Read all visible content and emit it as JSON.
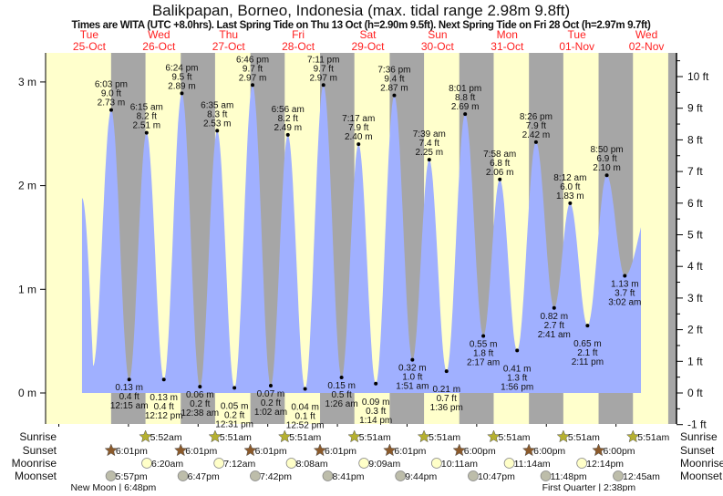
{
  "chart_data": {
    "type": "area",
    "title": "Balikpapan, Borneo, Indonesia (max. tidal range 2.98m 9.8ft)",
    "subtitle": "Times are WITA (UTC +8.0hrs). Last Spring Tide on Thu 13 Oct (h=2.90m 9.5ft). Next Spring Tide on Fri 28 Oct (h=2.97m 9.7ft)",
    "days": [
      {
        "name": "Tue",
        "date": "25-Oct"
      },
      {
        "name": "Wed",
        "date": "26-Oct"
      },
      {
        "name": "Thu",
        "date": "27-Oct"
      },
      {
        "name": "Fri",
        "date": "28-Oct"
      },
      {
        "name": "Sat",
        "date": "29-Oct"
      },
      {
        "name": "Sun",
        "date": "30-Oct"
      },
      {
        "name": "Mon",
        "date": "31-Oct"
      },
      {
        "name": "Tue",
        "date": "01-Nov"
      },
      {
        "name": "Wed",
        "date": "02-Nov"
      }
    ],
    "y_left": {
      "unit": "m",
      "ticks": [
        "0 m",
        "1 m",
        "2 m",
        "3 m"
      ],
      "values": [
        0,
        1,
        2,
        3
      ]
    },
    "y_right": {
      "unit": "ft",
      "ticks": [
        "-1 ft",
        "0 ft",
        "1 ft",
        "2 ft",
        "3 ft",
        "4 ft",
        "5 ft",
        "6 ft",
        "7 ft",
        "8 ft",
        "9 ft",
        "10 ft"
      ],
      "values": [
        -1,
        0,
        1,
        2,
        3,
        4,
        5,
        6,
        7,
        8,
        9,
        10
      ]
    },
    "ylim_m": [
      -0.3,
      3.28
    ],
    "curve_start": {
      "day": 0,
      "time": "8:00am",
      "m": 1.88
    },
    "curve_unlabeled_low": {
      "day": 0,
      "time": "11:48am",
      "m": 0.26
    },
    "curve_end": {
      "day": 8,
      "time": "8:36am",
      "m": 1.6
    },
    "tides": [
      {
        "day": 0,
        "time": "6:03pm",
        "m": "2.73 m",
        "ft": "9.0 ft",
        "type": "high",
        "value": 2.73
      },
      {
        "day": 1,
        "time": "12:15am",
        "m": "0.13 m",
        "ft": "0.4 ft",
        "type": "low",
        "value": 0.13
      },
      {
        "day": 1,
        "time": "6:15am",
        "m": "2.51 m",
        "ft": "8.2 ft",
        "type": "high",
        "value": 2.51
      },
      {
        "day": 1,
        "time": "12:12pm",
        "m": "0.13 m",
        "ft": "0.4 ft",
        "type": "low",
        "value": 0.13
      },
      {
        "day": 1,
        "time": "6:24pm",
        "m": "2.89 m",
        "ft": "9.5 ft",
        "type": "high",
        "value": 2.89
      },
      {
        "day": 2,
        "time": "12:38am",
        "m": "0.06 m",
        "ft": "0.2 ft",
        "type": "low",
        "value": 0.06
      },
      {
        "day": 2,
        "time": "6:35am",
        "m": "2.53 m",
        "ft": "8.3 ft",
        "type": "high",
        "value": 2.53
      },
      {
        "day": 2,
        "time": "12:31pm",
        "m": "0.05 m",
        "ft": "0.2 ft",
        "type": "low",
        "value": 0.05
      },
      {
        "day": 2,
        "time": "6:46pm",
        "m": "2.97 m",
        "ft": "9.7 ft",
        "type": "high",
        "value": 2.97
      },
      {
        "day": 3,
        "time": "1:02am",
        "m": "0.07 m",
        "ft": "0.2 ft",
        "type": "low",
        "value": 0.07
      },
      {
        "day": 3,
        "time": "6:56am",
        "m": "2.49 m",
        "ft": "8.2 ft",
        "type": "high",
        "value": 2.49
      },
      {
        "day": 3,
        "time": "12:52pm",
        "m": "0.04 m",
        "ft": "0.1 ft",
        "type": "low",
        "value": 0.04
      },
      {
        "day": 3,
        "time": "7:11pm",
        "m": "2.97 m",
        "ft": "9.7 ft",
        "type": "high",
        "value": 2.97
      },
      {
        "day": 4,
        "time": "1:26am",
        "m": "0.15 m",
        "ft": "0.5 ft",
        "type": "low",
        "value": 0.15
      },
      {
        "day": 4,
        "time": "7:17am",
        "m": "2.40 m",
        "ft": "7.9 ft",
        "type": "high",
        "value": 2.4
      },
      {
        "day": 4,
        "time": "1:14pm",
        "m": "0.09 m",
        "ft": "0.3 ft",
        "type": "low",
        "value": 0.09
      },
      {
        "day": 4,
        "time": "7:36pm",
        "m": "2.87 m",
        "ft": "9.4 ft",
        "type": "high",
        "value": 2.87
      },
      {
        "day": 5,
        "time": "1:51am",
        "m": "0.32 m",
        "ft": "1.0 ft",
        "type": "low",
        "value": 0.32
      },
      {
        "day": 5,
        "time": "7:39am",
        "m": "2.25 m",
        "ft": "7.4 ft",
        "type": "high",
        "value": 2.25
      },
      {
        "day": 5,
        "time": "1:36pm",
        "m": "0.21 m",
        "ft": "0.7 ft",
        "type": "low",
        "value": 0.21
      },
      {
        "day": 5,
        "time": "8:01pm",
        "m": "2.69 m",
        "ft": "8.8 ft",
        "type": "high",
        "value": 2.69
      },
      {
        "day": 6,
        "time": "2:17am",
        "m": "0.55 m",
        "ft": "1.8 ft",
        "type": "low",
        "value": 0.55
      },
      {
        "day": 6,
        "time": "7:58am",
        "m": "2.06 m",
        "ft": "6.8 ft",
        "type": "high",
        "value": 2.06
      },
      {
        "day": 6,
        "time": "1:56pm",
        "m": "0.41 m",
        "ft": "1.3 ft",
        "type": "low",
        "value": 0.41
      },
      {
        "day": 6,
        "time": "8:26pm",
        "m": "2.42 m",
        "ft": "7.9 ft",
        "type": "high",
        "value": 2.42
      },
      {
        "day": 7,
        "time": "2:41am",
        "m": "0.82 m",
        "ft": "2.7 ft",
        "type": "low",
        "value": 0.82
      },
      {
        "day": 7,
        "time": "8:12am",
        "m": "1.83 m",
        "ft": "6.0 ft",
        "type": "high",
        "value": 1.83
      },
      {
        "day": 7,
        "time": "2:11pm",
        "m": "0.65 m",
        "ft": "2.1 ft",
        "type": "low",
        "value": 0.65
      },
      {
        "day": 7,
        "time": "8:50pm",
        "m": "2.10 m",
        "ft": "6.9 ft",
        "type": "high",
        "value": 2.1
      },
      {
        "day": 8,
        "time": "3:02am",
        "m": "1.13 m",
        "ft": "3.7 ft",
        "type": "low",
        "value": 1.13
      }
    ],
    "rows": {
      "sunrise": {
        "label": "Sunrise",
        "events": [
          {
            "day": 1,
            "time": "5:52am"
          },
          {
            "day": 2,
            "time": "5:51am"
          },
          {
            "day": 3,
            "time": "5:51am"
          },
          {
            "day": 4,
            "time": "5:51am"
          },
          {
            "day": 5,
            "time": "5:51am"
          },
          {
            "day": 6,
            "time": "5:51am"
          },
          {
            "day": 7,
            "time": "5:51am"
          },
          {
            "day": 8,
            "time": "5:51am"
          }
        ]
      },
      "sunset": {
        "label": "Sunset",
        "events": [
          {
            "day": 0,
            "time": "6:01pm"
          },
          {
            "day": 1,
            "time": "6:01pm"
          },
          {
            "day": 2,
            "time": "6:01pm"
          },
          {
            "day": 3,
            "time": "6:01pm"
          },
          {
            "day": 4,
            "time": "6:01pm"
          },
          {
            "day": 5,
            "time": "6:00pm"
          },
          {
            "day": 6,
            "time": "6:00pm"
          },
          {
            "day": 7,
            "time": "6:00pm"
          }
        ]
      },
      "moonrise": {
        "label": "Moonrise",
        "events": [
          {
            "day": 1,
            "time": "6:20am"
          },
          {
            "day": 2,
            "time": "7:12am"
          },
          {
            "day": 3,
            "time": "8:08am"
          },
          {
            "day": 4,
            "time": "9:09am"
          },
          {
            "day": 5,
            "time": "10:11am"
          },
          {
            "day": 6,
            "time": "11:14am"
          },
          {
            "day": 7,
            "time": "12:14pm"
          }
        ]
      },
      "moonset": {
        "label": "Moonset",
        "events": [
          {
            "day": 0,
            "time": "5:57pm"
          },
          {
            "day": 1,
            "time": "6:47pm"
          },
          {
            "day": 2,
            "time": "7:42pm"
          },
          {
            "day": 3,
            "time": "8:41pm"
          },
          {
            "day": 4,
            "time": "9:44pm"
          },
          {
            "day": 5,
            "time": "10:47pm"
          },
          {
            "day": 6,
            "time": "11:48pm"
          },
          {
            "day": 8,
            "time": "12:45am"
          }
        ]
      }
    },
    "moon_phases": [
      {
        "label": "New Moon | 6:48pm",
        "day": 0,
        "time": "6:48pm"
      },
      {
        "label": "First Quarter | 2:38pm",
        "day": 7,
        "time": "2:38pm"
      }
    ],
    "colors": {
      "day": "#ffffcc",
      "night": "#a6a6a6",
      "water": "#a0b0ff",
      "daylabel": "#ff2020",
      "sunrise": "#b5b030",
      "sunset": "#8b5a2b",
      "moonrise": "#ffffc8",
      "moonset": "#bdbdaa"
    }
  }
}
